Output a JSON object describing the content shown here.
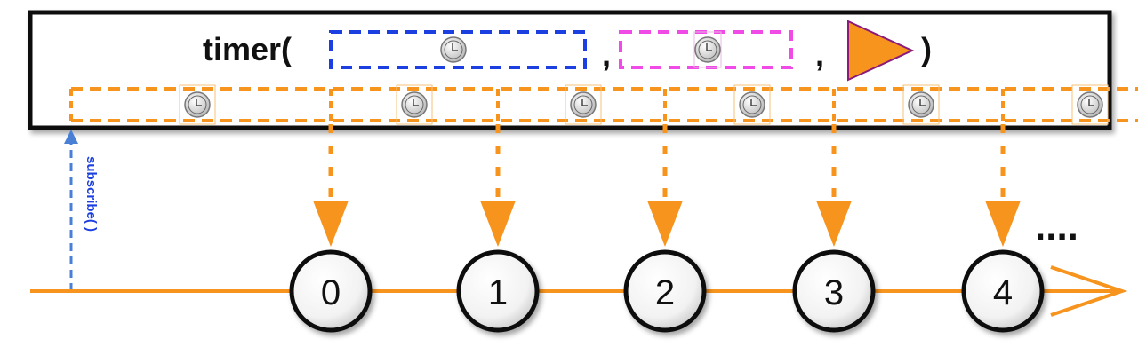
{
  "operator": {
    "name": "timer(",
    "separator": ",",
    "close": ")"
  },
  "subscribe_label": "subscribe( )",
  "ellipsis": "....",
  "emissions": [
    "0",
    "1",
    "2",
    "3",
    "4"
  ],
  "colors": {
    "orange": "#F7941D",
    "blue": "#1B3FE0",
    "magenta": "#F04BE6",
    "subscribe_blue": "#4A7FD6",
    "frame": "#111111"
  },
  "icons": {
    "clock": "clock-icon",
    "scheduler": "play-triangle-icon",
    "arrow": "arrow-down-icon"
  }
}
